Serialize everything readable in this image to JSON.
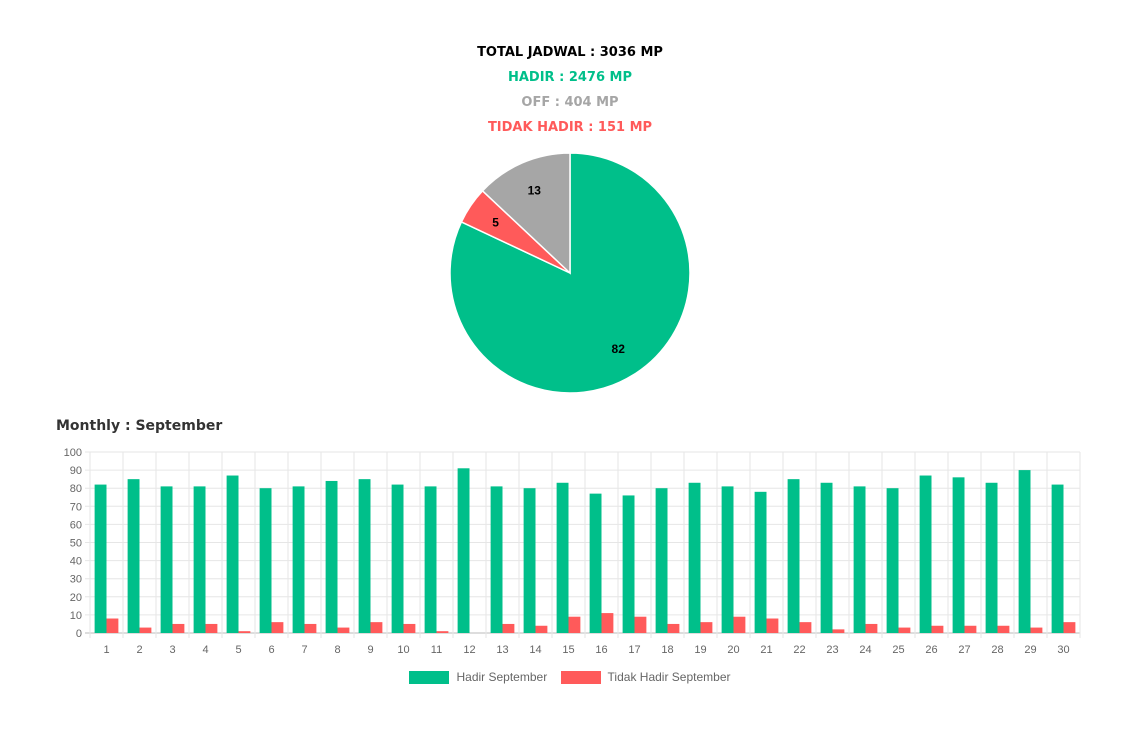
{
  "summary": {
    "total": "TOTAL JADWAL : 3036 MP",
    "hadir": "HADIR : 2476 MP",
    "off": "OFF : 404 MP",
    "tidak_hadir": "TIDAK HADIR : 151 MP"
  },
  "colors": {
    "total": "#000000",
    "hadir": "#00bf8a",
    "off": "#a6a6a6",
    "tidak_hadir": "#ff5a5a"
  },
  "monthly_title": "Monthly : September",
  "chart_data": [
    {
      "type": "pie",
      "slices": [
        {
          "label": "82",
          "value": 82,
          "color": "#00bf8a"
        },
        {
          "label": "5",
          "value": 5,
          "color": "#ff5a5a"
        },
        {
          "label": "13",
          "value": 13,
          "color": "#a6a6a6"
        }
      ]
    },
    {
      "type": "bar",
      "categories": [
        "1",
        "2",
        "3",
        "4",
        "5",
        "6",
        "7",
        "8",
        "9",
        "10",
        "11",
        "12",
        "13",
        "14",
        "15",
        "16",
        "17",
        "18",
        "19",
        "20",
        "21",
        "22",
        "23",
        "24",
        "25",
        "26",
        "27",
        "28",
        "29",
        "30"
      ],
      "series": [
        {
          "name": "Hadir September",
          "color": "#00bf8a",
          "values": [
            82,
            85,
            81,
            81,
            87,
            80,
            81,
            84,
            85,
            82,
            81,
            91,
            81,
            80,
            83,
            77,
            76,
            80,
            83,
            81,
            78,
            85,
            83,
            81,
            80,
            87,
            86,
            83,
            90,
            82
          ]
        },
        {
          "name": "Tidak Hadir September",
          "color": "#ff5a5a",
          "values": [
            8,
            3,
            5,
            5,
            1,
            6,
            5,
            3,
            6,
            5,
            1,
            0,
            5,
            4,
            9,
            11,
            9,
            5,
            6,
            9,
            8,
            6,
            2,
            5,
            3,
            4,
            4,
            4,
            3,
            6
          ]
        }
      ],
      "ylim": [
        0,
        100
      ],
      "yticks": [
        0,
        10,
        20,
        30,
        40,
        50,
        60,
        70,
        80,
        90,
        100
      ],
      "grid": true,
      "legend_position": "bottom"
    }
  ]
}
